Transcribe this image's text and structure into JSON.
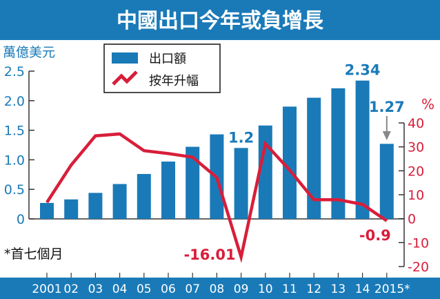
{
  "colors": {
    "title_bg": "#1a7ab8",
    "bar": "#1a7ab8",
    "line": "#d81e3a",
    "axis_band": "#1a7ab8",
    "arrow": "#888888"
  },
  "chart_data": {
    "type": "bar",
    "title": "中國出口今年或負增長",
    "categories": [
      "2001",
      "02",
      "03",
      "04",
      "05",
      "06",
      "07",
      "08",
      "09",
      "10",
      "11",
      "12",
      "13",
      "14",
      "2015*"
    ],
    "series": [
      {
        "name": "出口額",
        "type": "bar",
        "axis": "left",
        "values": [
          0.27,
          0.33,
          0.44,
          0.59,
          0.76,
          0.97,
          1.22,
          1.43,
          1.2,
          1.58,
          1.9,
          2.05,
          2.21,
          2.34,
          1.27
        ]
      },
      {
        "name": "按年升幅",
        "type": "line",
        "axis": "right",
        "values": [
          6.8,
          22.4,
          34.6,
          35.4,
          28.4,
          27.2,
          25.7,
          17.2,
          -16.01,
          31.3,
          20.3,
          7.9,
          7.9,
          6.0,
          -0.9
        ]
      }
    ],
    "ylabel": "萬億美元",
    "ylim": [
      0,
      2.5
    ],
    "yticks": [
      "2.5",
      "2.0",
      "1.5",
      "1.0",
      "0.5",
      "0"
    ],
    "y2label": "%",
    "y2lim": [
      -20,
      40
    ],
    "y2ticks": [
      "40",
      "30",
      "20",
      "10",
      "0",
      "-10",
      "-20"
    ],
    "annotations": [
      {
        "text": "1.2",
        "series": "出口額",
        "category": "09"
      },
      {
        "text": "2.34",
        "series": "出口額",
        "category": "14"
      },
      {
        "text": "1.27",
        "series": "出口額",
        "category": "2015*"
      },
      {
        "text": "-16.01",
        "series": "按年升幅",
        "category": "09"
      },
      {
        "text": "-0.9",
        "series": "按年升幅",
        "category": "2015*"
      }
    ],
    "note": "*首七個月",
    "legend_position": "top-center",
    "grid": false
  }
}
